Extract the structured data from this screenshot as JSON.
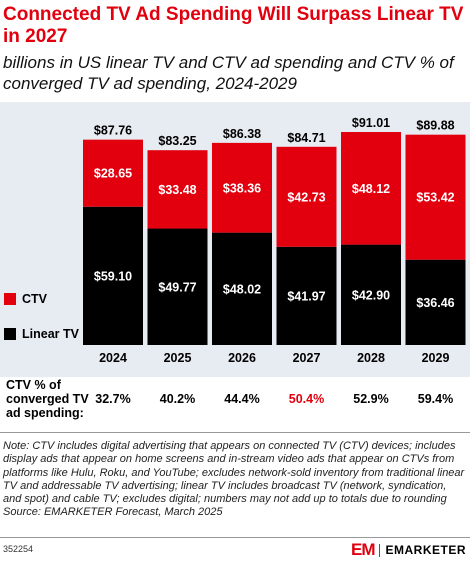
{
  "chart_data": {
    "type": "bar",
    "title": "Connected TV Ad Spending Will Surpass Linear TV in 2027",
    "subtitle": "billions in US linear TV and CTV ad spending and CTV % of converged TV ad spending, 2024-2029",
    "categories": [
      "2024",
      "2025",
      "2026",
      "2027",
      "2028",
      "2029"
    ],
    "stacked": true,
    "ylim": [
      0,
      100
    ],
    "series": [
      {
        "name": "Linear TV",
        "color": "#000000",
        "values": [
          59.1,
          49.77,
          48.02,
          41.97,
          42.9,
          36.46
        ],
        "labels": [
          "$59.10",
          "$49.77",
          "$48.02",
          "$41.97",
          "$42.90",
          "$36.46"
        ]
      },
      {
        "name": "CTV",
        "color": "#e2000f",
        "values": [
          28.65,
          33.48,
          38.36,
          42.73,
          48.12,
          53.42
        ],
        "labels": [
          "$28.65",
          "$33.48",
          "$38.36",
          "$42.73",
          "$48.12",
          "$53.42"
        ]
      }
    ],
    "totals": [
      87.76,
      83.25,
      86.38,
      84.71,
      91.01,
      89.88
    ],
    "total_labels": [
      "$87.76",
      "$83.25",
      "$86.38",
      "$84.71",
      "$91.01",
      "$89.88"
    ],
    "legend_position": "left",
    "share": {
      "label": "CTV % of converged TV ad spending:",
      "values": [
        32.7,
        40.2,
        44.4,
        50.4,
        52.9,
        59.4
      ],
      "labels": [
        "32.7%",
        "40.2%",
        "44.4%",
        "50.4%",
        "52.9%",
        "59.4%"
      ],
      "highlight_index": 3,
      "highlight_color": "#e2000f"
    }
  },
  "note": "Note: CTV includes digital advertising that appears on connected TV (CTV) devices; includes display ads that appear on home screens and in-stream video ads that appear on CTVs from platforms like Hulu, Roku, and YouTube; excludes network-sold inventory from traditional linear TV and addressable TV advertising; linear TV includes broadcast TV (network, syndication, and spot) and cable TV; excludes digital; numbers may not add up to totals due to rounding",
  "source": "Source: EMARKETER Forecast, March 2025",
  "chart_id": "352254",
  "brand": {
    "mark": "EM",
    "name": "EMARKETER"
  }
}
